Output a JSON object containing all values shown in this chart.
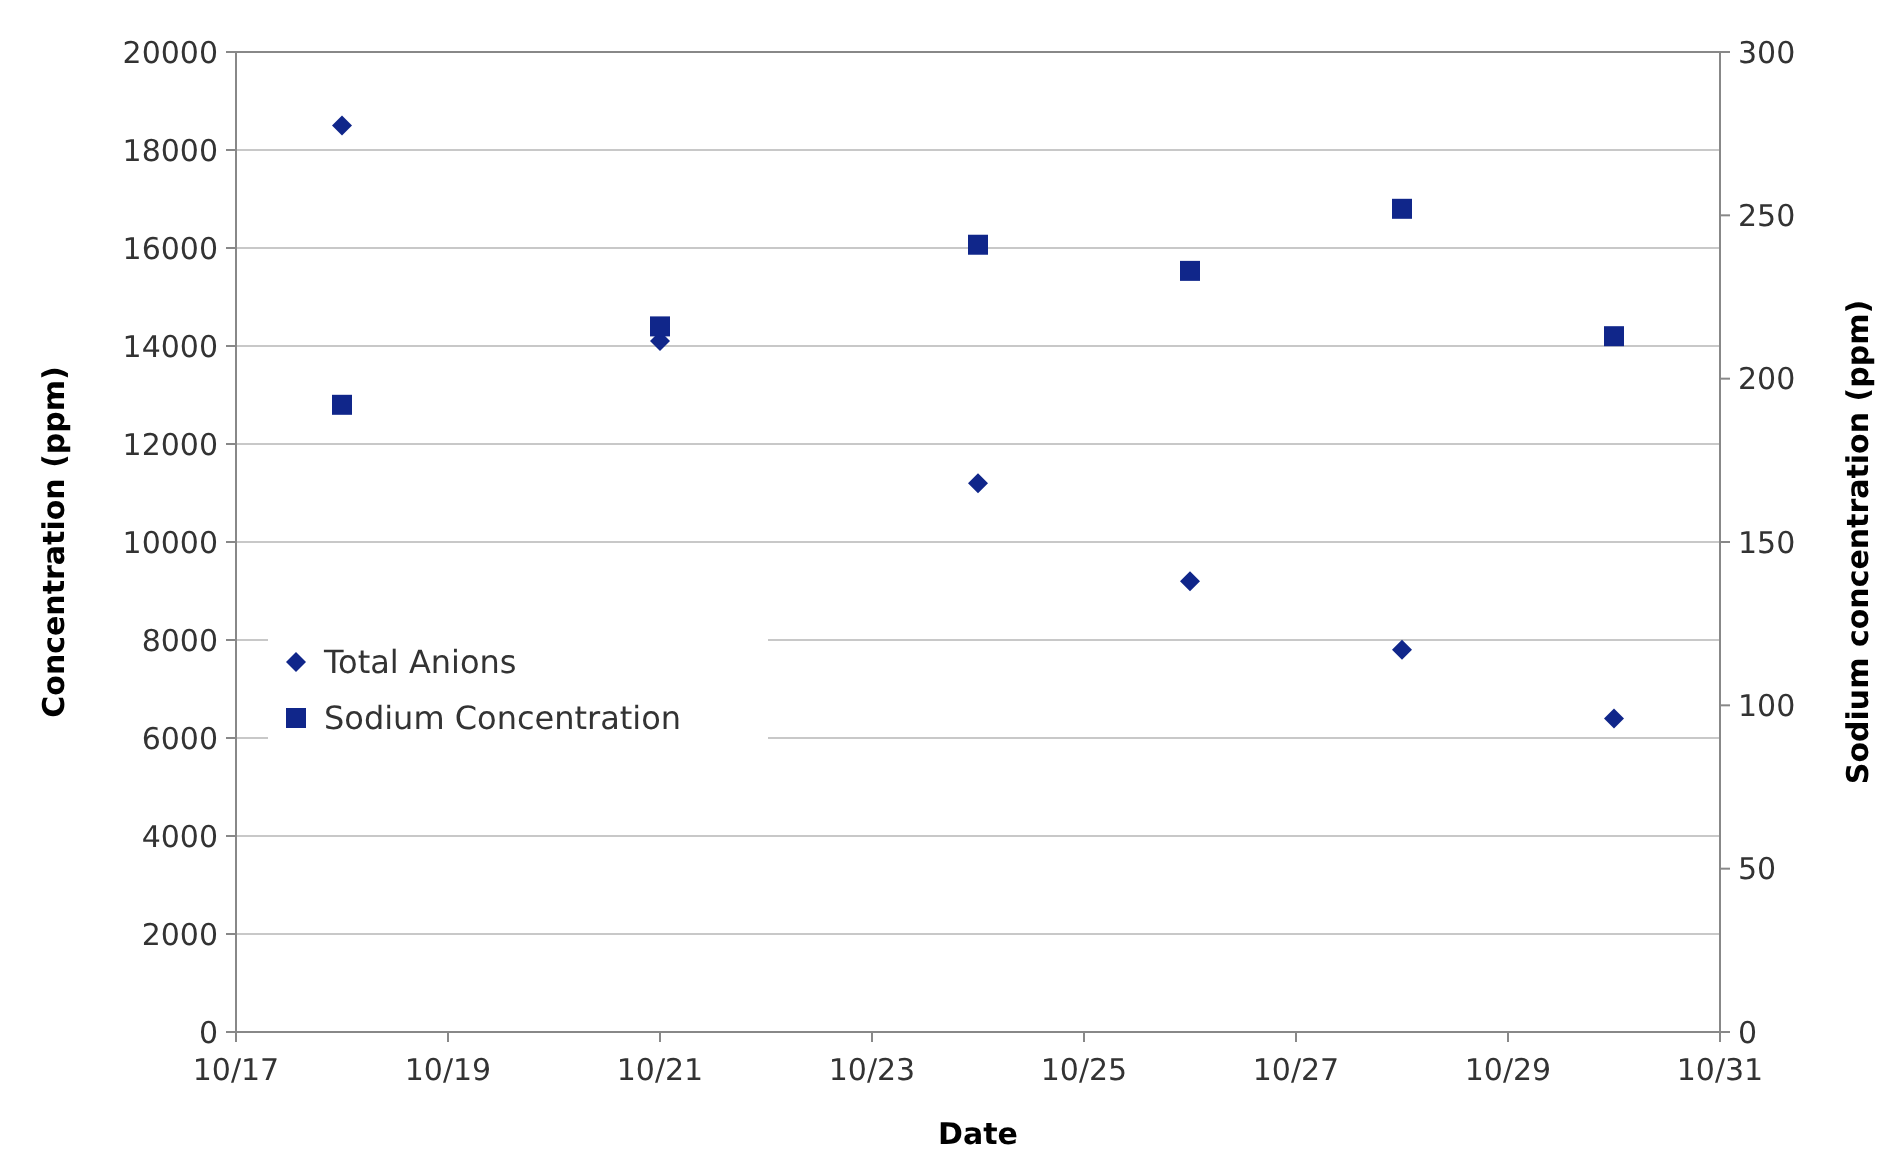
{
  "chart_data": {
    "type": "scatter",
    "xlabel": "Date",
    "ylabel": "Concentration (ppm)",
    "y2label": "Sodium concentration (ppm)",
    "x": [
      "--10-18",
      "--10-21",
      "--10-24",
      "--10-26",
      "--10-28",
      "--10-30"
    ],
    "series": [
      {
        "name": "Total Anions",
        "color": "#10268a",
        "marker": "diamond",
        "values": [
          18500,
          14100,
          11200,
          9200,
          7800,
          6400
        ]
      },
      {
        "name": "Sodium Concentration",
        "color": "#10268a",
        "marker": "square",
        "axis": "y2",
        "values": [
          192,
          216,
          241,
          233,
          252,
          213
        ]
      }
    ],
    "xlim": [
      "--10-17",
      "--10-31"
    ],
    "xticks": [
      {
        "value": "--10-17",
        "label": "10/17"
      },
      {
        "value": "--10-19",
        "label": "10/19"
      },
      {
        "value": "--10-21",
        "label": "10/21"
      },
      {
        "value": "--10-23",
        "label": "10/23"
      },
      {
        "value": "--10-25",
        "label": "10/25"
      },
      {
        "value": "--10-27",
        "label": "10/27"
      },
      {
        "value": "--10-29",
        "label": "10/29"
      },
      {
        "value": "--10-31",
        "label": "10/31"
      }
    ],
    "ylim": [
      0,
      20000
    ],
    "yticks": [
      0,
      2000,
      4000,
      6000,
      8000,
      10000,
      12000,
      14000,
      16000,
      18000,
      20000
    ],
    "y2lim": [
      0,
      300
    ],
    "y2ticks": [
      0,
      50,
      100,
      150,
      200,
      250,
      300
    ],
    "grid": "y",
    "legend": "left"
  }
}
